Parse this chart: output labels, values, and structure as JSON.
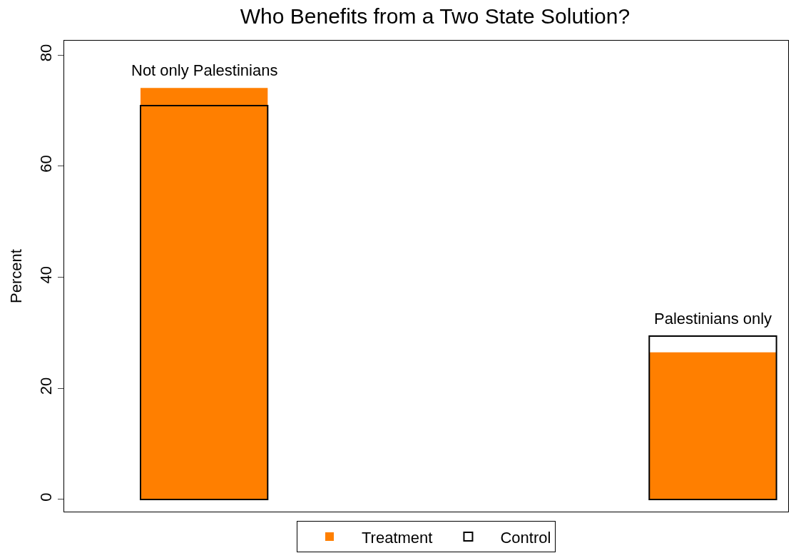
{
  "chart_data": {
    "type": "bar",
    "title": "Who Benefits from a Two State Solution?",
    "ylabel": "Percent",
    "categories": [
      "Not only Palestinians",
      "Palestinians only"
    ],
    "series": [
      {
        "name": "Treatment",
        "color": "#ff7f00",
        "values": [
          74.1,
          26.5
        ]
      },
      {
        "name": "Control",
        "color": "#000000",
        "values": [
          70.9,
          29.4
        ]
      }
    ],
    "ylim": [
      -2.2,
      82.6
    ],
    "yticks": [
      0,
      20,
      40,
      60,
      80
    ],
    "legend": "bottom"
  }
}
